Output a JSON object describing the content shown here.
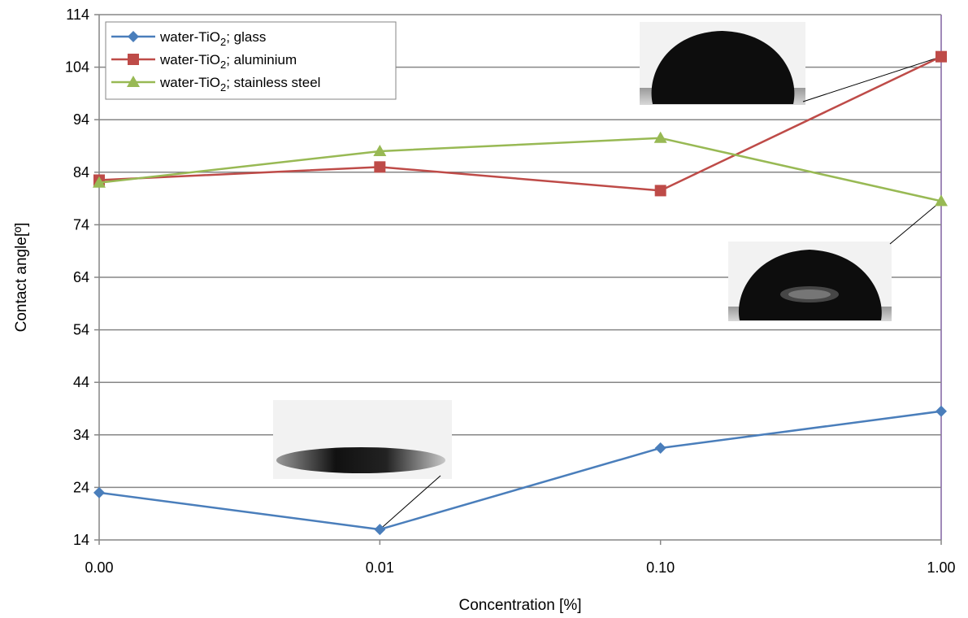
{
  "chart_data": {
    "type": "line",
    "x_axis": {
      "label": "Concentration [%]",
      "categories": [
        "0.00",
        "0.01",
        "0.10",
        "1.00"
      ]
    },
    "y_axis": {
      "label": "Contact angle[º]",
      "min": 14,
      "max": 114,
      "ticks": [
        14,
        24,
        34,
        44,
        54,
        64,
        74,
        84,
        94,
        104,
        114
      ]
    },
    "grid": "horizontal",
    "legend": {
      "placement": "top-left"
    },
    "series": [
      {
        "name": "water-TiO2; glass",
        "name_main": "water-TiO",
        "name_sub": "2",
        "name_rest": "; glass",
        "color": "#4a7ebb",
        "marker": "diamond",
        "values": [
          23,
          16,
          31.5,
          38.5
        ]
      },
      {
        "name": "water-TiO2; aluminium",
        "name_main": "water-TiO",
        "name_sub": "2",
        "name_rest": "; aluminium",
        "color": "#be4b48",
        "marker": "square",
        "values": [
          82.5,
          85,
          80.5,
          106
        ]
      },
      {
        "name": "water-TiO2; stainless steel",
        "name_main": "water-TiO",
        "name_sub": "2",
        "name_rest": "; stainless steel",
        "color": "#98b954",
        "marker": "triangle",
        "values": [
          82,
          88,
          90.5,
          78.5
        ]
      }
    ],
    "insets": [
      {
        "depicts": "droplet image",
        "points_to": {
          "series": 0,
          "index": 1
        }
      },
      {
        "depicts": "droplet image",
        "points_to": {
          "series": 1,
          "index": 3
        }
      },
      {
        "depicts": "droplet image",
        "points_to": {
          "series": 2,
          "index": 3
        }
      }
    ]
  }
}
